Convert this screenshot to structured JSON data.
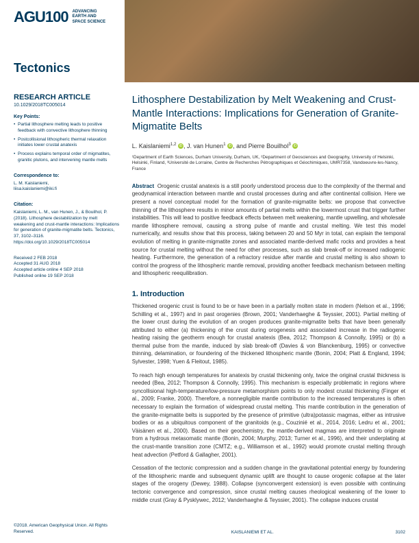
{
  "header": {
    "logo_main": "AGU100",
    "logo_sub1": "ADVANCING",
    "logo_sub2": "EARTH AND",
    "logo_sub3": "SPACE SCIENCE",
    "journal": "Tectonics"
  },
  "sidebar": {
    "article_type": "RESEARCH ARTICLE",
    "doi": "10.1029/2018TC005014",
    "keypoints_heading": "Key Points:",
    "keypoints": [
      "Partial lithosphere melting leads to positive feedback with convective lithosphere thinning",
      "Postcollisional lithospheric thermal relaxation initiates lower crustal anatexis",
      "Process explains temporal order of migmatites, granitic plutons, and intervening mantle melts"
    ],
    "correspondence_heading": "Correspondence to:",
    "correspondence_name": "L. M. Kaislaniemi,",
    "correspondence_email": "liisa.kaislaniemi@iki.fi",
    "citation_heading": "Citation:",
    "citation": "Kaislaniemi, L. M., van Hunen, J., & Bouilhol, P. (2018). Lithosphere destabilization by melt weakening and crust-mantle interactions: Implications for generation of granite-migmatite belts. Tectonics, 37, 3102–3116. https://doi.org/10.1029/2018TC005014",
    "received": "Received 2 FEB 2018",
    "accepted": "Accepted 31 AUG 2018",
    "accepted_online": "Accepted article online 4 SEP 2018",
    "published": "Published online 19 SEP 2018"
  },
  "main": {
    "title": "Lithosphere Destabilization by Melt Weakening and Crust-Mantle Interactions: Implications for Generation of Granite-Migmatite Belts",
    "authors_html": "L. Kaislaniemi<sup>1,2</sup> ⬤, J. van Hunen<sup>1</sup> ⬤, and Pierre Bouilhol<sup>3</sup> ⬤",
    "author1": "L. Kaislaniemi",
    "author1_sup": "1,2",
    "author2": "J. van Hunen",
    "author2_sup": "1",
    "author3": "Pierre Bouilhol",
    "author3_sup": "3",
    "affiliations": "¹Department of Earth Sciences, Durham University, Durham, UK, ²Department of Geosciences and Geography, University of Helsinki, Helsinki, Finland, ³Université de Lorraine, Centre de Recherches Pétrographiques et Géochimiques, UMR7358, Vandoeuvre-les-Nancy, France",
    "abstract_label": "Abstract",
    "abstract": "Orogenic crustal anatexis is a still poorly understood process due to the complexity of the thermal and geodynamical interaction between mantle and crustal processes during and after continental collision. Here we present a novel conceptual model for the formation of granite-migmatite belts: we propose that convective thinning of the lithosphere results in minor amounts of partial melts within the lowermost crust that trigger further instabilities. This will lead to positive feedback effects between melt weakening, mantle upwelling, and wholesale mantle lithosphere removal, causing a strong pulse of mantle and crustal melting. We test this model numerically, and results show that this process, taking between 20 and 50 Myr in total, can explain the temporal evolution of melting in granite-migmatite zones and associated mantle-derived mafic rocks and provides a heat source for crustal melting without the need for other processes, such as slab break-off or increased radiogenic heating. Furthermore, the generation of a refractory residue after mantle and crustal melting is also shown to control the progress of the lithospheric mantle removal, providing another feedback mechanism between melting and lithospheric reequilibration.",
    "section1_heading": "1. Introduction",
    "para1": "Thickened orogenic crust is found to be or have been in a partially molten state in modern (Nelson et al., 1996; Schilling et al., 1997) and in past orogenies (Brown, 2001; Vanderhaeghe & Teyssier, 2001). Partial melting of the lower crust during the evolution of an orogen produces granite-migmatite belts that have been generally attributed to either (a) thickening of the crust during orogenesis and associated increase in the radiogenic heating raising the geotherm enough for crustal anatexis (Bea, 2012; Thompson & Connolly, 1995) or (b) a thermal pulse from the mantle, induced by slab break-off (Davies & von Blanckenburg, 1995) or convective thinning, delamination, or foundering of the thickened lithospheric mantle (Bonin, 2004; Platt & England, 1994; Sylvester, 1998; Yuen & Fleitout, 1985).",
    "para2": "To reach high enough temperatures for anatexis by crustal thickening only, twice the original crustal thickness is needed (Bea, 2012; Thompson & Connolly, 1995). This mechanism is especially problematic in regions where syncollisional high-temperature/low-pressure metamorphism points to only modest crustal thickening (Finger et al., 2009; Franke, 2000). Therefore, a nonnegligible mantle contribution to the increased temperatures is often necessary to explain the formation of widespread crustal melting. This mantle contribution in the generation of the granite-migmatite belts is supported by the presence of primitive (ultra)potassic magmas, either as intrusive bodies or as a ubiquitous component of the granitoids (e.g., Couzinié et al., 2014, 2016; Ledru et al., 2001; Väisänen et al., 2000). Based on their geochemistry, the mantle-derived magmas are interpreted to originate from a hydrous metasomatic mantle (Bonin, 2004; Murphy, 2013; Turner et al., 1996), and their underplating at the crust-mantle transition zone (CMTZ; e.g., Williamson et al., 1992) would promote crustal melting through heat advection (Petford & Gallagher, 2001).",
    "para3": "Cessation of the tectonic compression and a sudden change in the gravitational potential energy by foundering of the lithospheric mantle and subsequent dynamic uplift are thought to cause orogenic collapse at the later stages of the orogeny (Dewey, 1988). Collapse (synconvergent extension) is even possible with continuing tectonic convergence and compression, since crustal melting causes rheological weakening of the lower to middle crust (Gray & Pysklywec, 2012; Vanderhaeghe & Teyssier, 2001). The collapse induces crustal"
  },
  "footer": {
    "copyright": "©2018. American Geophysical Union. All Rights Reserved.",
    "authors": "KAISLANIEMI ET AL.",
    "page": "3102"
  }
}
